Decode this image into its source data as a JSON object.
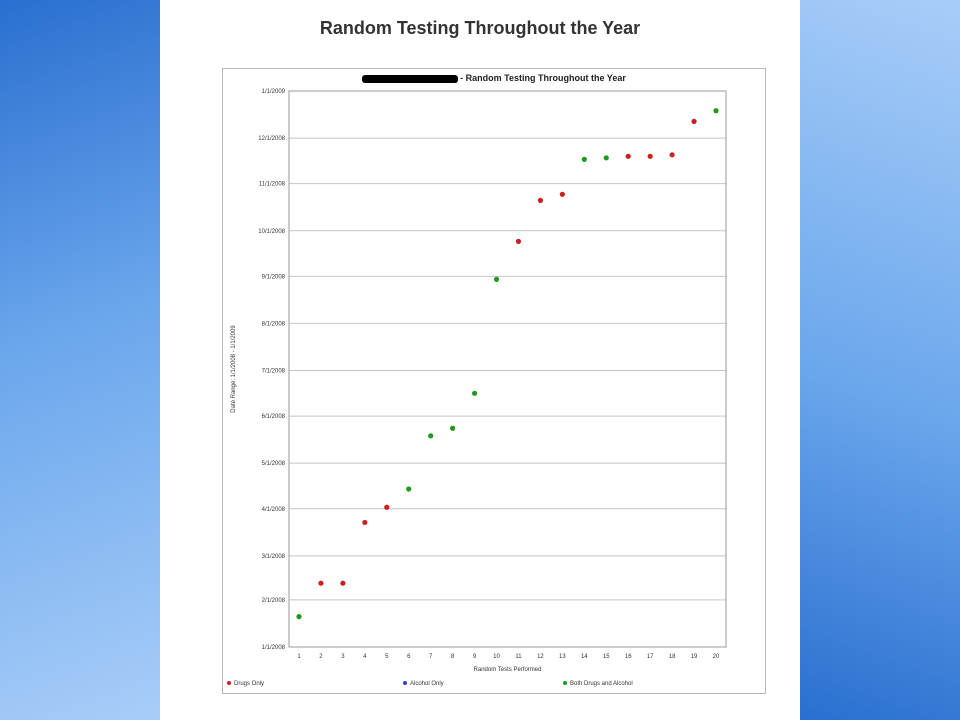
{
  "slide": {
    "title": "Random Testing Throughout the Year"
  },
  "chart_data": {
    "type": "scatter",
    "title": "- Random Testing Throughout the Year",
    "xlabel": "Random Tests Performed",
    "ylabel": "Date Range: 1/1/2008 - 1/1/2009",
    "x_ticks": [
      "1",
      "2",
      "3",
      "4",
      "5",
      "6",
      "7",
      "8",
      "9",
      "10",
      "11",
      "12",
      "13",
      "14",
      "15",
      "16",
      "17",
      "18",
      "19",
      "20"
    ],
    "y_ticks": [
      "1/1/2008",
      "2/1/2008",
      "3/1/2008",
      "4/1/2008",
      "5/1/2008",
      "6/1/2008",
      "7/1/2008",
      "8/1/2008",
      "9/1/2008",
      "10/1/2008",
      "11/1/2008",
      "12/1/2008",
      "1/1/2009"
    ],
    "y_range": [
      "1/1/2008",
      "1/1/2009"
    ],
    "grid": true,
    "legend_position": "bottom",
    "series": [
      {
        "name": "Drugs Only",
        "color": "#cc1f1f",
        "points": [
          {
            "x": 2,
            "y": "2/12/2008"
          },
          {
            "x": 3,
            "y": "2/12/2008"
          },
          {
            "x": 4,
            "y": "3/23/2008"
          },
          {
            "x": 5,
            "y": "4/2/2008"
          },
          {
            "x": 11,
            "y": "9/24/2008"
          },
          {
            "x": 12,
            "y": "10/21/2008"
          },
          {
            "x": 13,
            "y": "10/25/2008"
          },
          {
            "x": 16,
            "y": "11/19/2008"
          },
          {
            "x": 17,
            "y": "11/19/2008"
          },
          {
            "x": 18,
            "y": "11/20/2008"
          },
          {
            "x": 19,
            "y": "12/12/2008"
          }
        ]
      },
      {
        "name": "Alcohol Only",
        "color": "#2a3fd0",
        "points": []
      },
      {
        "name": "Both Drugs and Alcohol",
        "color": "#1e9a1e",
        "points": [
          {
            "x": 1,
            "y": "1/21/2008"
          },
          {
            "x": 6,
            "y": "4/14/2008"
          },
          {
            "x": 7,
            "y": "5/19/2008"
          },
          {
            "x": 8,
            "y": "5/24/2008"
          },
          {
            "x": 9,
            "y": "6/16/2008"
          },
          {
            "x": 10,
            "y": "8/30/2008"
          },
          {
            "x": 14,
            "y": "11/17/2008"
          },
          {
            "x": 15,
            "y": "11/18/2008"
          },
          {
            "x": 20,
            "y": "12/19/2008"
          }
        ]
      }
    ]
  }
}
